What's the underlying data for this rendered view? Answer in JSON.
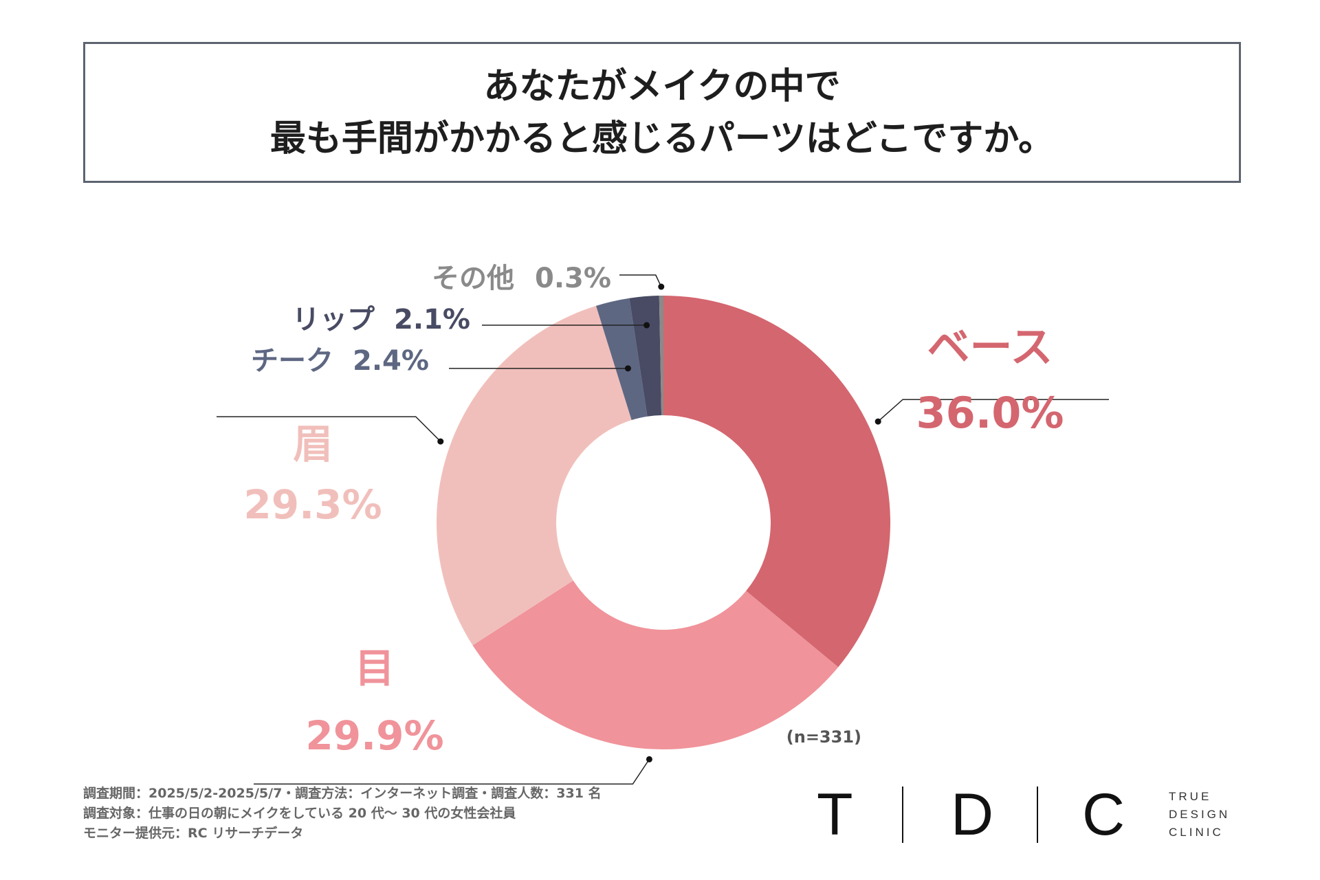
{
  "title": {
    "line1": "あなたがメイクの中で",
    "line2": "最も手間がかかると感じるパーツはどこですか。"
  },
  "chart_data": {
    "type": "pie",
    "variant": "donut",
    "title": "あなたがメイクの中で最も手間がかかると感じるパーツはどこですか。",
    "categories": [
      "ベース",
      "目",
      "眉",
      "チーク",
      "リップ",
      "その他"
    ],
    "values": [
      36.0,
      29.9,
      29.3,
      2.4,
      2.1,
      0.3
    ],
    "value_labels": [
      "36.0%",
      "29.9%",
      "29.3%",
      "2.4%",
      "2.1%",
      "0.3%"
    ],
    "colors": [
      "#d4666f",
      "#f0939a",
      "#f1bfbb",
      "#5d6782",
      "#484b63",
      "#8a8a8a"
    ],
    "sample_size": "(n=331)"
  },
  "footer": {
    "line1": "調査期間：2025/5/2-2025/5/7・調査方法：インターネット調査・調査人数：331 名",
    "line2": "調査対象：仕事の日の朝にメイクをしている 20 代〜 30 代の女性会社員",
    "line3": "モニター提供元：RC リサーチデータ"
  },
  "logo": {
    "letters": [
      "T",
      "D",
      "C"
    ],
    "sub1": "TRUE",
    "sub2": "DESIGN",
    "sub3": "CLINIC"
  }
}
